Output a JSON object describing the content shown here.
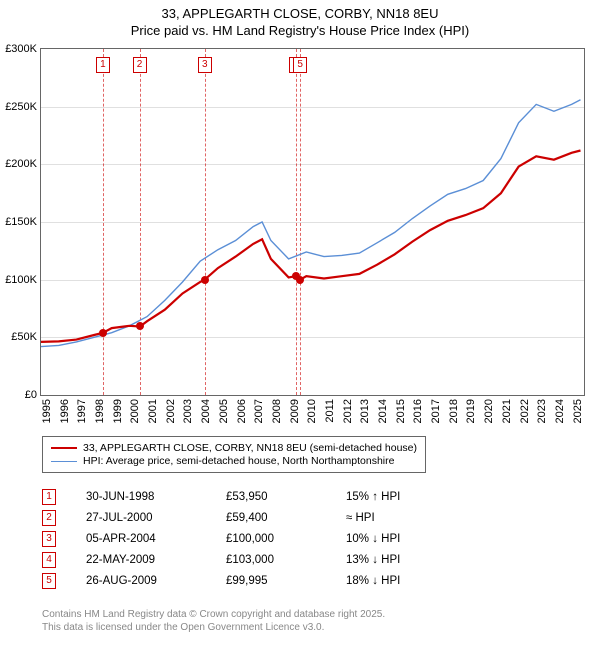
{
  "title": {
    "line1": "33, APPLEGARTH CLOSE, CORBY, NN18 8EU",
    "line2": "Price paid vs. HM Land Registry's House Price Index (HPI)"
  },
  "chart": {
    "type": "line",
    "background_color": "#ffffff",
    "grid_color": "#e0e0e0",
    "border_color": "#666666",
    "xlim": [
      1995,
      2025.7
    ],
    "ylim": [
      0,
      300000
    ],
    "y_ticks": [
      {
        "v": 0,
        "label": "£0"
      },
      {
        "v": 50000,
        "label": "£50K"
      },
      {
        "v": 100000,
        "label": "£100K"
      },
      {
        "v": 150000,
        "label": "£150K"
      },
      {
        "v": 200000,
        "label": "£200K"
      },
      {
        "v": 250000,
        "label": "£250K"
      },
      {
        "v": 300000,
        "label": "£300K"
      }
    ],
    "x_ticks": [
      1995,
      1996,
      1997,
      1998,
      1999,
      2000,
      2001,
      2002,
      2003,
      2004,
      2005,
      2006,
      2007,
      2008,
      2009,
      2010,
      2011,
      2012,
      2013,
      2014,
      2015,
      2016,
      2017,
      2018,
      2019,
      2020,
      2021,
      2022,
      2023,
      2024,
      2025
    ],
    "series": [
      {
        "name": "price_paid",
        "label": "33, APPLEGARTH CLOSE, CORBY, NN18 8EU (semi-detached house)",
        "color": "#cc0000",
        "line_width": 2.2,
        "points": [
          [
            1995,
            46000
          ],
          [
            1996,
            46500
          ],
          [
            1997,
            48000
          ],
          [
            1998,
            52000
          ],
          [
            1998.5,
            53950
          ],
          [
            1999,
            58000
          ],
          [
            2000,
            60000
          ],
          [
            2000.6,
            59400
          ],
          [
            2001,
            64000
          ],
          [
            2002,
            74000
          ],
          [
            2003,
            88000
          ],
          [
            2004,
            98000
          ],
          [
            2004.25,
            100000
          ],
          [
            2005,
            110000
          ],
          [
            2006,
            120000
          ],
          [
            2007,
            131000
          ],
          [
            2007.5,
            135000
          ],
          [
            2008,
            118000
          ],
          [
            2009,
            102000
          ],
          [
            2009.4,
            103000
          ],
          [
            2009.65,
            99995
          ],
          [
            2010,
            103000
          ],
          [
            2011,
            101000
          ],
          [
            2012,
            103000
          ],
          [
            2013,
            105000
          ],
          [
            2014,
            113000
          ],
          [
            2015,
            122000
          ],
          [
            2016,
            133000
          ],
          [
            2017,
            143000
          ],
          [
            2018,
            151000
          ],
          [
            2019,
            156000
          ],
          [
            2020,
            162000
          ],
          [
            2021,
            175000
          ],
          [
            2022,
            198000
          ],
          [
            2023,
            207000
          ],
          [
            2024,
            204000
          ],
          [
            2025,
            210000
          ],
          [
            2025.5,
            212000
          ]
        ]
      },
      {
        "name": "hpi",
        "label": "HPI: Average price, semi-detached house, North Northamptonshire",
        "color": "#5b8fd6",
        "line_width": 1.4,
        "points": [
          [
            1995,
            42000
          ],
          [
            1996,
            43000
          ],
          [
            1997,
            46000
          ],
          [
            1998,
            50000
          ],
          [
            1999,
            54000
          ],
          [
            2000,
            60000
          ],
          [
            2001,
            68000
          ],
          [
            2002,
            82000
          ],
          [
            2003,
            98000
          ],
          [
            2004,
            116000
          ],
          [
            2005,
            126000
          ],
          [
            2006,
            134000
          ],
          [
            2007,
            146000
          ],
          [
            2007.5,
            150000
          ],
          [
            2008,
            134000
          ],
          [
            2009,
            118000
          ],
          [
            2010,
            124000
          ],
          [
            2011,
            120000
          ],
          [
            2012,
            121000
          ],
          [
            2013,
            123000
          ],
          [
            2014,
            132000
          ],
          [
            2015,
            141000
          ],
          [
            2016,
            153000
          ],
          [
            2017,
            164000
          ],
          [
            2018,
            174000
          ],
          [
            2019,
            179000
          ],
          [
            2020,
            186000
          ],
          [
            2021,
            205000
          ],
          [
            2022,
            236000
          ],
          [
            2023,
            252000
          ],
          [
            2024,
            246000
          ],
          [
            2025,
            252000
          ],
          [
            2025.5,
            256000
          ]
        ]
      }
    ],
    "markers": [
      {
        "n": "1",
        "x": 1998.5,
        "y": 53950
      },
      {
        "n": "2",
        "x": 2000.57,
        "y": 59400
      },
      {
        "n": "3",
        "x": 2004.26,
        "y": 100000
      },
      {
        "n": "4",
        "x": 2009.39,
        "y": 103000
      },
      {
        "n": "5",
        "x": 2009.65,
        "y": 99995
      }
    ],
    "marker_box_color": "#cc0000",
    "dot_color": "#cc0000"
  },
  "legend": {
    "items": [
      {
        "color": "#cc0000",
        "width": 2.2,
        "label": "33, APPLEGARTH CLOSE, CORBY, NN18 8EU (semi-detached house)"
      },
      {
        "color": "#5b8fd6",
        "width": 1.4,
        "label": "HPI: Average price, semi-detached house, North Northamptonshire"
      }
    ]
  },
  "sales": [
    {
      "n": "1",
      "date": "30-JUN-1998",
      "price": "£53,950",
      "hpi": "15% ↑ HPI"
    },
    {
      "n": "2",
      "date": "27-JUL-2000",
      "price": "£59,400",
      "hpi": "≈ HPI"
    },
    {
      "n": "3",
      "date": "05-APR-2004",
      "price": "£100,000",
      "hpi": "10% ↓ HPI"
    },
    {
      "n": "4",
      "date": "22-MAY-2009",
      "price": "£103,000",
      "hpi": "13% ↓ HPI"
    },
    {
      "n": "5",
      "date": "26-AUG-2009",
      "price": "£99,995",
      "hpi": "18% ↓ HPI"
    }
  ],
  "attribution": {
    "line1": "Contains HM Land Registry data © Crown copyright and database right 2025.",
    "line2": "This data is licensed under the Open Government Licence v3.0."
  }
}
